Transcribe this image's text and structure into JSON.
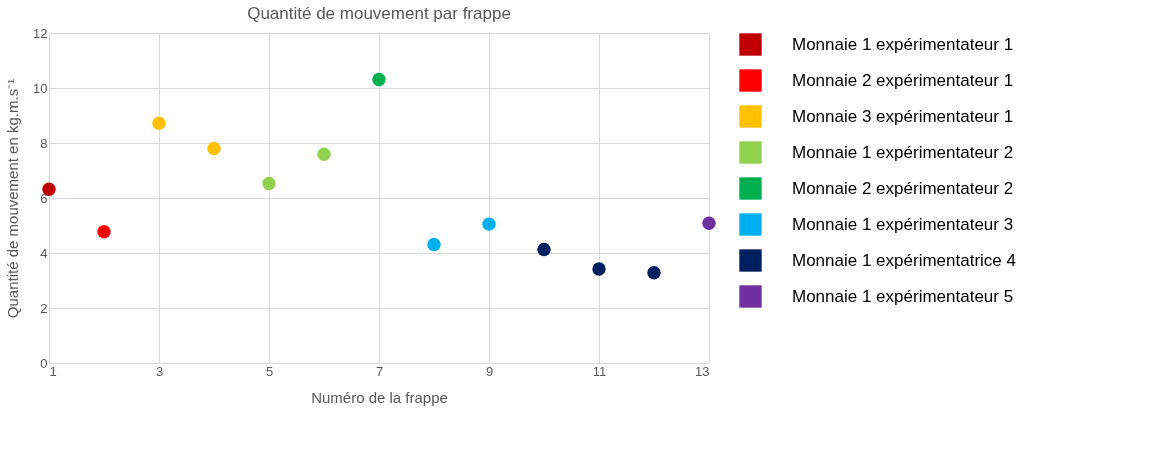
{
  "chart_data": {
    "type": "scatter",
    "title": "Quantité de mouvement par frappe",
    "xlabel": "Numéro de la frappe",
    "ylabel": "Quantité de mouvement en kg.m.s⁻¹",
    "xlim": [
      1,
      13
    ],
    "xticks": [
      1,
      3,
      5,
      7,
      9,
      11,
      13
    ],
    "ylim": [
      0,
      12
    ],
    "yticks": [
      0,
      2,
      4,
      6,
      8,
      10,
      12
    ],
    "grid": true,
    "legend": "right",
    "marker": "circle",
    "series": [
      {
        "name": "Monnaie 1 expérimentateur 1",
        "color": "#c00000",
        "x": [
          1
        ],
        "values": [
          6.32
        ]
      },
      {
        "name": "Monnaie 2 expérimentateur 1",
        "color": "#ff0000",
        "x": [
          2
        ],
        "values": [
          4.77
        ]
      },
      {
        "name": "Monnaie 3 expérimentateur 1",
        "color": "#ffc000",
        "x": [
          3,
          4
        ],
        "values": [
          8.72,
          7.8
        ]
      },
      {
        "name": "Monnaie 1 expérimentateur 2",
        "color": "#92d050",
        "x": [
          5,
          6
        ],
        "values": [
          6.53,
          7.59
        ]
      },
      {
        "name": "Monnaie 2 expérimentateur 2",
        "color": "#00b050",
        "x": [
          7
        ],
        "values": [
          10.31
        ]
      },
      {
        "name": "Monnaie 1 expérimentateur 3",
        "color": "#00b0f0",
        "x": [
          8,
          9
        ],
        "values": [
          4.31,
          5.05
        ]
      },
      {
        "name": "Monnaie 1 expérimentatrice 4",
        "color": "#002060",
        "x": [
          10,
          11,
          12
        ],
        "values": [
          4.13,
          3.42,
          3.28
        ]
      },
      {
        "name": "Monnaie 1 expérimentateur 5",
        "color": "#7030a0",
        "x": [
          13
        ],
        "values": [
          5.08
        ]
      }
    ]
  }
}
